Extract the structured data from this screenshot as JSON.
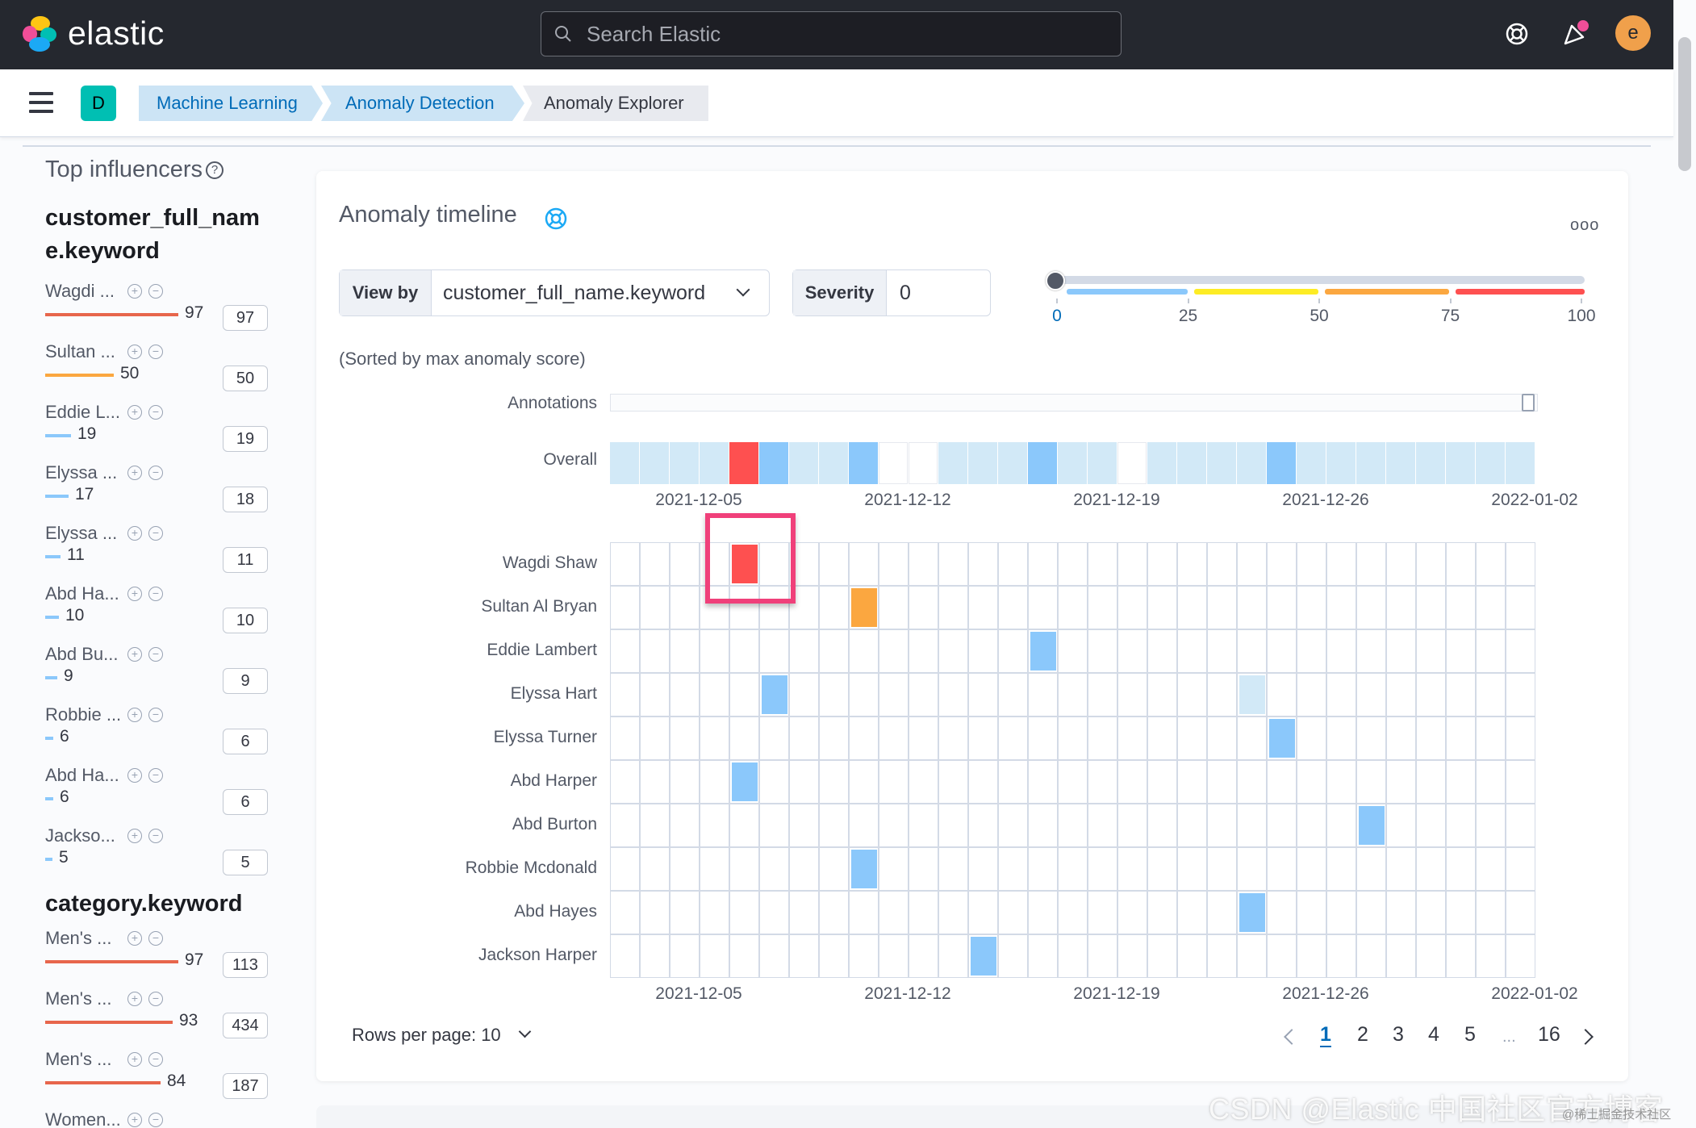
{
  "header": {
    "logo_text": "elastic",
    "search_placeholder": "Search Elastic",
    "avatar_letter": "e"
  },
  "nav": {
    "space_badge": "D",
    "breadcrumbs": [
      "Machine Learning",
      "Anomaly Detection",
      "Anomaly Explorer"
    ]
  },
  "influencers": {
    "title": "Top influencers",
    "groups": [
      {
        "field_line1": "customer_full_nam",
        "field_line2": "e.keyword",
        "items": [
          {
            "name": "Wagdi ...",
            "score": "97",
            "count": "97",
            "color": "#e7664c",
            "bar_fraction": 0.97
          },
          {
            "name": "Sultan ...",
            "score": "50",
            "count": "50",
            "color": "#fba740",
            "bar_fraction": 0.5
          },
          {
            "name": "Eddie L...",
            "score": "19",
            "count": "19",
            "color": "#6092c0",
            "bar_fraction": 0.19
          },
          {
            "name": "Elyssa ...",
            "score": "17",
            "count": "18",
            "color": "#6092c0",
            "bar_fraction": 0.17
          },
          {
            "name": "Elyssa ...",
            "score": "11",
            "count": "11",
            "color": "#6092c0",
            "bar_fraction": 0.11
          },
          {
            "name": "Abd Ha...",
            "score": "10",
            "count": "10",
            "color": "#6092c0",
            "bar_fraction": 0.1
          },
          {
            "name": "Abd Bu...",
            "score": "9",
            "count": "9",
            "color": "#6092c0",
            "bar_fraction": 0.09
          },
          {
            "name": "Robbie ...",
            "score": "6",
            "count": "6",
            "color": "#6092c0",
            "bar_fraction": 0.06
          },
          {
            "name": "Abd Ha...",
            "score": "6",
            "count": "6",
            "color": "#6092c0",
            "bar_fraction": 0.06
          },
          {
            "name": "Jackso...",
            "score": "5",
            "count": "5",
            "color": "#6092c0",
            "bar_fraction": 0.05
          }
        ]
      },
      {
        "field_line1": "category.keyword",
        "items": [
          {
            "name": "Men's ...",
            "score": "97",
            "count": "113",
            "color": "#e7664c",
            "bar_fraction": 0.97
          },
          {
            "name": "Men's ...",
            "score": "93",
            "count": "434",
            "color": "#e7664c",
            "bar_fraction": 0.93
          },
          {
            "name": "Men's ...",
            "score": "84",
            "count": "187",
            "color": "#e7664c",
            "bar_fraction": 0.84
          },
          {
            "name": "Women...",
            "score": "",
            "count": "",
            "color": "#e7664c",
            "bar_fraction": 0
          }
        ]
      }
    ]
  },
  "timeline": {
    "title": "Anomaly timeline",
    "menu_glyph": "ooo",
    "view_by_label": "View by",
    "view_by_value": "customer_full_name.keyword",
    "severity_label": "Severity",
    "severity_value": "0",
    "severity_ticks": [
      "0",
      "25",
      "50",
      "75",
      "100"
    ],
    "sorted_note": "(Sorted by max anomaly score)",
    "annotations_label": "Annotations",
    "overall_label": "Overall",
    "date_labels": [
      "2021-12-05",
      "2021-12-12",
      "2021-12-19",
      "2021-12-26",
      "2022-01-02"
    ],
    "colors": {
      "critical": "#fe5050",
      "major": "#fba740",
      "minor": "#fdec25",
      "warning": "#8bc8fb",
      "low": "#d2e9f7",
      "empty": "#ffffff"
    },
    "overall_cells": [
      "low",
      "low",
      "low",
      "low",
      "critical",
      "warning",
      "low",
      "low",
      "warning",
      "empty",
      "empty",
      "low",
      "low",
      "low",
      "warning",
      "low",
      "low",
      "empty",
      "low",
      "low",
      "low",
      "low",
      "warning",
      "low",
      "low",
      "low",
      "low",
      "low",
      "low",
      "low",
      "low"
    ],
    "rows": [
      {
        "label": "Wagdi Shaw",
        "cells": [
          [
            4,
            "critical"
          ]
        ]
      },
      {
        "label": "Sultan Al Bryan",
        "cells": [
          [
            8,
            "major"
          ]
        ]
      },
      {
        "label": "Eddie Lambert",
        "cells": [
          [
            14,
            "warning"
          ]
        ]
      },
      {
        "label": "Elyssa Hart",
        "cells": [
          [
            5,
            "warning"
          ],
          [
            21,
            "low"
          ]
        ]
      },
      {
        "label": "Elyssa Turner",
        "cells": [
          [
            22,
            "warning"
          ]
        ]
      },
      {
        "label": "Abd Harper",
        "cells": [
          [
            4,
            "warning"
          ]
        ]
      },
      {
        "label": "Abd Burton",
        "cells": [
          [
            25,
            "warning"
          ]
        ]
      },
      {
        "label": "Robbie Mcdonald",
        "cells": [
          [
            8,
            "warning"
          ]
        ]
      },
      {
        "label": "Abd Hayes",
        "cells": [
          [
            21,
            "warning"
          ]
        ]
      },
      {
        "label": "Jackson Harper",
        "cells": [
          [
            12,
            "warning"
          ]
        ]
      }
    ],
    "rows_per_page": "Rows per page: 10",
    "pages": [
      "1",
      "2",
      "3",
      "4",
      "5",
      "...",
      "16"
    ],
    "current_page": "1"
  },
  "watermark": "CSDN @Elastic 中国社区官方博客",
  "watermark_small": "@稀土掘金技术社区"
}
